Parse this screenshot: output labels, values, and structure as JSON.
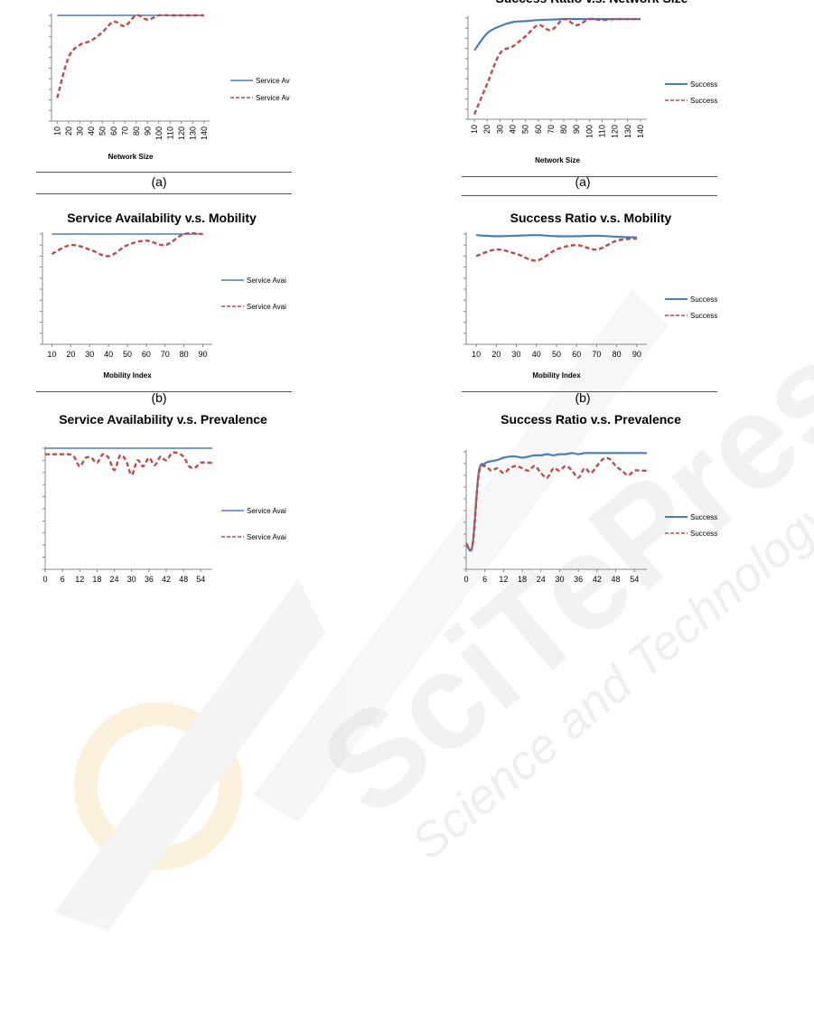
{
  "captions": {
    "a_left": "(a)",
    "a_right": "(a)",
    "b_left": "(b)",
    "b_right": "(b)"
  },
  "watermark": {
    "brand": "SciTePress",
    "tagline": "Science and Technology Publications"
  },
  "colors": {
    "blue": "#4a7ebb",
    "red": "#be4b48"
  },
  "chart_data": [
    {
      "id": "sa_network",
      "type": "line",
      "title": "",
      "xlabel": "Network Size",
      "ylabel": "",
      "x": [
        10,
        20,
        30,
        40,
        50,
        60,
        70,
        80,
        90,
        100,
        110,
        120,
        130,
        140
      ],
      "x_tick_labels": [
        "10",
        "20",
        "30",
        "40",
        "50",
        "60",
        "70",
        "80",
        "90",
        "100",
        "110",
        "120",
        "130",
        "140"
      ],
      "x_tick_rotated": true,
      "ylim": [
        0,
        1
      ],
      "series": [
        {
          "name": "Service Av",
          "style": "solid",
          "values": [
            1,
            1,
            1,
            1,
            1,
            1,
            1,
            1,
            1,
            1,
            1,
            1,
            1,
            1
          ]
        },
        {
          "name": "Service Av",
          "style": "dashed",
          "values": [
            0.22,
            0.6,
            0.72,
            0.76,
            0.84,
            0.94,
            0.9,
            1.0,
            0.96,
            1.0,
            1.0,
            1.0,
            1.0,
            1.0
          ]
        }
      ]
    },
    {
      "id": "sr_network",
      "type": "line",
      "title": "Success Ratio v.s. Network Size",
      "xlabel": "Network Size",
      "ylabel": "",
      "x": [
        10,
        20,
        30,
        40,
        50,
        60,
        70,
        80,
        90,
        100,
        110,
        120,
        130,
        140
      ],
      "x_tick_labels": [
        "10",
        "20",
        "30",
        "40",
        "50",
        "60",
        "70",
        "80",
        "90",
        "100",
        "110",
        "120",
        "130",
        "140"
      ],
      "x_tick_rotated": true,
      "ylim": [
        0,
        1
      ],
      "series": [
        {
          "name": "Success",
          "style": "solid",
          "values": [
            0.68,
            0.85,
            0.92,
            0.96,
            0.97,
            0.98,
            0.985,
            0.99,
            0.99,
            0.99,
            0.99,
            0.99,
            0.99,
            0.99
          ]
        },
        {
          "name": "Success",
          "style": "dashed",
          "values": [
            0.05,
            0.35,
            0.65,
            0.72,
            0.82,
            0.93,
            0.88,
            0.99,
            0.93,
            0.99,
            0.98,
            0.99,
            0.99,
            0.99
          ]
        }
      ]
    },
    {
      "id": "sa_mobility",
      "type": "line",
      "title": "Service Availability v.s. Mobility",
      "xlabel": "Mobility Index",
      "ylabel": "",
      "x": [
        10,
        20,
        30,
        40,
        50,
        60,
        70,
        80,
        90
      ],
      "x_tick_labels": [
        "10",
        "20",
        "30",
        "40",
        "50",
        "60",
        "70",
        "80",
        "90"
      ],
      "x_tick_rotated": false,
      "ylim": [
        0,
        1
      ],
      "series": [
        {
          "name": "Service Avai",
          "style": "solid",
          "values": [
            1,
            1,
            1,
            1,
            1,
            1,
            1,
            1,
            1
          ]
        },
        {
          "name": "Service Avai",
          "style": "dashed",
          "values": [
            0.82,
            0.9,
            0.86,
            0.8,
            0.9,
            0.94,
            0.9,
            1.0,
            1.0
          ]
        }
      ]
    },
    {
      "id": "sr_mobility",
      "type": "line",
      "title": "Success Ratio v.s. Mobility",
      "xlabel": "Mobility Index",
      "ylabel": "",
      "x": [
        10,
        20,
        30,
        40,
        50,
        60,
        70,
        80,
        90
      ],
      "x_tick_labels": [
        "10",
        "20",
        "30",
        "40",
        "50",
        "60",
        "70",
        "80",
        "90"
      ],
      "x_tick_rotated": false,
      "ylim": [
        0,
        1
      ],
      "series": [
        {
          "name": "Success",
          "style": "solid",
          "values": [
            0.99,
            0.98,
            0.985,
            0.99,
            0.98,
            0.98,
            0.985,
            0.975,
            0.97
          ]
        },
        {
          "name": "Success",
          "style": "dashed",
          "values": [
            0.8,
            0.86,
            0.82,
            0.76,
            0.86,
            0.9,
            0.86,
            0.94,
            0.96
          ]
        }
      ]
    },
    {
      "id": "sa_prevalence",
      "type": "line",
      "title": "Service Availability v.s. Prevalence",
      "xlabel": "",
      "ylabel": "",
      "x": [
        0,
        2,
        4,
        6,
        8,
        10,
        12,
        14,
        16,
        18,
        20,
        22,
        24,
        26,
        28,
        30,
        32,
        34,
        36,
        38,
        40,
        42,
        44,
        46,
        48,
        50,
        52,
        54,
        56,
        58
      ],
      "x_tick_labels": [
        "0",
        "6",
        "12",
        "18",
        "24",
        "30",
        "36",
        "42",
        "48",
        "54"
      ],
      "x_tick_values": [
        0,
        6,
        12,
        18,
        24,
        30,
        36,
        42,
        48,
        54
      ],
      "x_tick_rotated": false,
      "ylim": [
        0,
        1
      ],
      "series": [
        {
          "name": "Service Avai",
          "style": "solid",
          "values": [
            1,
            1,
            1,
            1,
            1,
            1,
            1,
            1,
            1,
            1,
            1,
            1,
            1,
            1,
            1,
            1,
            1,
            1,
            1,
            1,
            1,
            1,
            1,
            1,
            1,
            1,
            1,
            1,
            1,
            1
          ]
        },
        {
          "name": "Service Avai",
          "style": "dashed",
          "values": [
            0.95,
            0.95,
            0.95,
            0.95,
            0.95,
            0.93,
            0.85,
            0.92,
            0.92,
            0.88,
            0.95,
            0.92,
            0.82,
            0.94,
            0.9,
            0.78,
            0.9,
            0.85,
            0.92,
            0.86,
            0.93,
            0.9,
            0.96,
            0.96,
            0.93,
            0.85,
            0.84,
            0.88,
            0.88,
            0.88
          ]
        }
      ]
    },
    {
      "id": "sr_prevalence",
      "type": "line",
      "title": "Success Ratio v.s. Prevalence",
      "xlabel": "",
      "ylabel": "",
      "x": [
        0,
        2,
        4,
        6,
        8,
        10,
        12,
        14,
        16,
        18,
        20,
        22,
        24,
        26,
        28,
        30,
        32,
        34,
        36,
        38,
        40,
        42,
        44,
        46,
        48,
        50,
        52,
        54,
        56,
        58
      ],
      "x_tick_labels": [
        "0",
        "6",
        "12",
        "18",
        "24",
        "30",
        "36",
        "42",
        "48",
        "54"
      ],
      "x_tick_values": [
        0,
        6,
        12,
        18,
        24,
        30,
        36,
        42,
        48,
        54
      ],
      "x_tick_rotated": false,
      "ylim": [
        0,
        1
      ],
      "series": [
        {
          "name": "Success",
          "style": "solid",
          "values": [
            0.22,
            0.2,
            0.82,
            0.9,
            0.92,
            0.93,
            0.95,
            0.96,
            0.96,
            0.95,
            0.96,
            0.97,
            0.97,
            0.98,
            0.97,
            0.98,
            0.98,
            0.99,
            0.98,
            0.99,
            0.99,
            0.99,
            0.99,
            0.99,
            0.99,
            0.99,
            0.99,
            0.99,
            0.99,
            0.99
          ]
        },
        {
          "name": "Success",
          "style": "dashed",
          "values": [
            0.22,
            0.2,
            0.8,
            0.88,
            0.84,
            0.86,
            0.82,
            0.86,
            0.88,
            0.86,
            0.84,
            0.88,
            0.82,
            0.78,
            0.86,
            0.84,
            0.88,
            0.84,
            0.78,
            0.86,
            0.82,
            0.88,
            0.94,
            0.94,
            0.88,
            0.84,
            0.8,
            0.84,
            0.84,
            0.84
          ]
        }
      ]
    }
  ]
}
